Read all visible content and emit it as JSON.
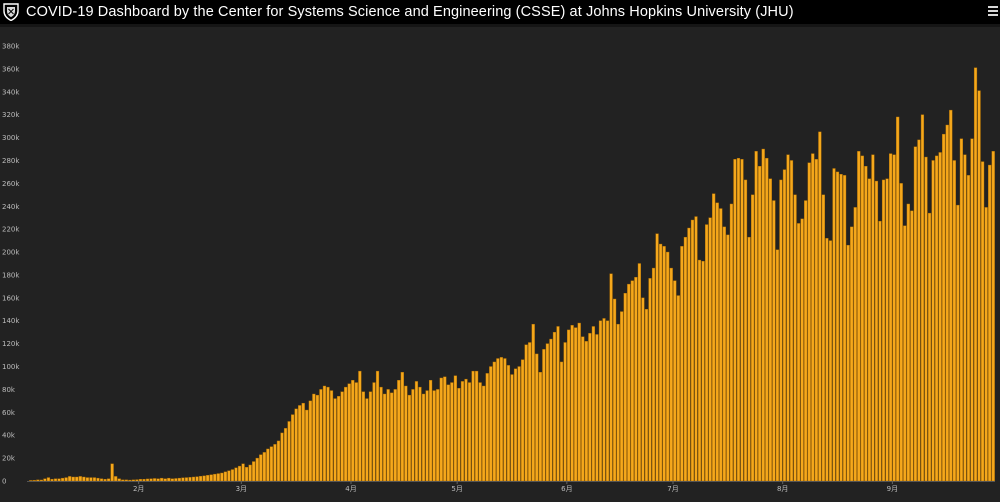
{
  "header": {
    "title": "COVID-19 Dashboard by the Center for Systems Science and Engineering (CSSE) at Johns Hopkins University (JHU)",
    "logo_icon": "jhu-shield-icon",
    "menu_icon": "hamburger-menu-icon"
  },
  "colors": {
    "background": "#222222",
    "titlebar": "#000000",
    "bar_fill": "#f5a81c",
    "bar_stroke": "#b06f00",
    "axis_text": "#bdbdbd"
  },
  "chart_data": {
    "type": "bar",
    "title": "",
    "xlabel": "",
    "ylabel": "",
    "ylim": [
      0,
      380000
    ],
    "ytick_values": [
      0,
      20000,
      40000,
      60000,
      80000,
      100000,
      120000,
      140000,
      160000,
      180000,
      200000,
      220000,
      240000,
      260000,
      280000,
      300000,
      320000,
      340000,
      360000,
      380000
    ],
    "ytick_labels": [
      "0",
      "20k",
      "40k",
      "60k",
      "80k",
      "100k",
      "120k",
      "140k",
      "160k",
      "180k",
      "200k",
      "220k",
      "240k",
      "260k",
      "280k",
      "300k",
      "320k",
      "340k",
      "360k",
      "380k"
    ],
    "x_ticks": [
      {
        "label": "2月",
        "index": 31
      },
      {
        "label": "3月",
        "index": 60
      },
      {
        "label": "4月",
        "index": 91
      },
      {
        "label": "5月",
        "index": 121
      },
      {
        "label": "6月",
        "index": 152
      },
      {
        "label": "7月",
        "index": 182
      },
      {
        "label": "8月",
        "index": 213
      },
      {
        "label": "9月",
        "index": 244
      }
    ],
    "values": [
      500,
      600,
      1000,
      900,
      2000,
      3000,
      1500,
      2000,
      2000,
      2500,
      3000,
      4000,
      3500,
      3500,
      4000,
      3500,
      3000,
      3000,
      3000,
      2500,
      2000,
      1500,
      2000,
      15000,
      4000,
      2000,
      1000,
      1000,
      800,
      1000,
      1200,
      1500,
      1500,
      1800,
      2000,
      2200,
      2000,
      2500,
      2000,
      2500,
      2000,
      2200,
      2500,
      2800,
      3000,
      3200,
      3500,
      3800,
      4200,
      4500,
      5000,
      5500,
      6000,
      6500,
      7000,
      8000,
      9000,
      10000,
      11500,
      13000,
      15000,
      12000,
      14000,
      17000,
      20000,
      23000,
      25000,
      28000,
      30000,
      32000,
      35000,
      42000,
      46000,
      52000,
      58000,
      63000,
      66000,
      68000,
      62000,
      70000,
      76000,
      75000,
      80000,
      83000,
      82000,
      79000,
      72000,
      74000,
      78000,
      82000,
      85000,
      88000,
      86000,
      96000,
      78000,
      72000,
      78000,
      86000,
      96000,
      82000,
      76000,
      80000,
      77000,
      80000,
      88000,
      95000,
      83000,
      75000,
      80000,
      87000,
      82000,
      76000,
      79000,
      88000,
      79000,
      80000,
      90000,
      91000,
      84000,
      86000,
      92000,
      81000,
      87000,
      89000,
      86000,
      96000,
      96000,
      86000,
      83000,
      94000,
      100000,
      104000,
      107000,
      108000,
      107000,
      101000,
      93000,
      98000,
      100000,
      106000,
      119000,
      121000,
      137000,
      111000,
      95000,
      115000,
      120000,
      124000,
      130000,
      135000,
      104000,
      121000,
      132000,
      136000,
      134000,
      138000,
      126000,
      122000,
      129000,
      135000,
      128000,
      140000,
      142000,
      140000,
      181000,
      159000,
      137000,
      148000,
      164000,
      172000,
      175000,
      178000,
      190000,
      160000,
      150000,
      177000,
      186000,
      216000,
      207000,
      205000,
      200000,
      186000,
      175000,
      162000,
      205000,
      213000,
      221000,
      228000,
      231000,
      193000,
      192000,
      224000,
      230000,
      251000,
      243000,
      238000,
      222000,
      215000,
      242000,
      281000,
      282000,
      281000,
      263000,
      213000,
      250000,
      288000,
      275000,
      290000,
      282000,
      264000,
      245000,
      202000,
      263000,
      272000,
      285000,
      280000,
      250000,
      225000,
      229000,
      245000,
      278000,
      286000,
      281000,
      305000,
      250000,
      212000,
      210000,
      273000,
      270000,
      268000,
      267000,
      206000,
      222000,
      239000,
      288000,
      284000,
      275000,
      264000,
      285000,
      262000,
      227000,
      263000,
      264000,
      286000,
      285000,
      318000,
      260000,
      223000,
      242000,
      236000,
      292000,
      298000,
      320000,
      283000,
      234000,
      280000,
      284000,
      287000,
      303000,
      311000,
      324000,
      280000,
      241000,
      299000,
      285000,
      267000,
      299000,
      361000,
      341000,
      279000,
      239000,
      276000,
      288000
    ]
  }
}
